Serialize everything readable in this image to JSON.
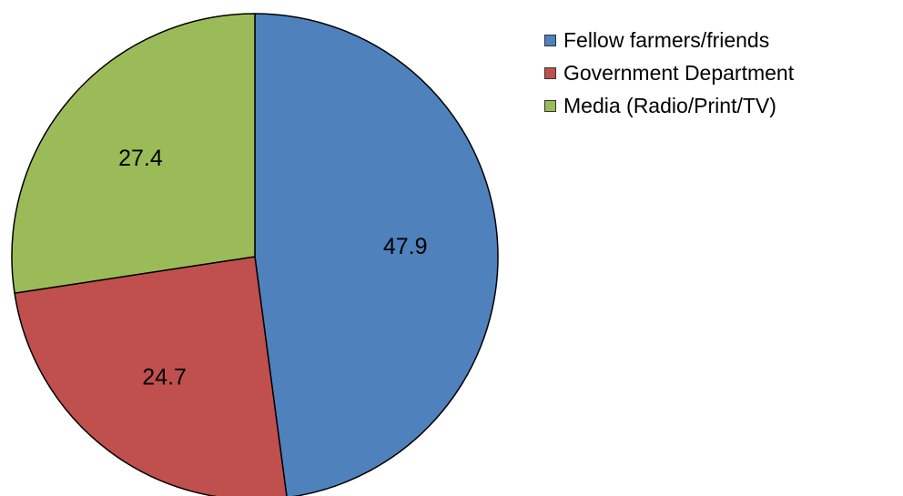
{
  "chart_data": {
    "type": "pie",
    "title": "",
    "categories": [
      "Fellow farmers/friends",
      "Government Department",
      "Media (Radio/Print/TV)"
    ],
    "values": [
      47.9,
      24.7,
      27.4
    ],
    "data_labels": [
      "47.9",
      "24.7",
      "27.4"
    ],
    "colors": [
      "#4F81BD",
      "#C0504D",
      "#9BBB59"
    ],
    "start_angle_deg": 0,
    "direction": "clockwise",
    "legend": {
      "position": "top-right",
      "items": [
        {
          "label": "Fellow farmers/friends",
          "color": "#4F81BD"
        },
        {
          "label": "Government Department",
          "color": "#C0504D"
        },
        {
          "label": "Media (Radio/Print/TV)",
          "color": "#9BBB59"
        }
      ]
    }
  }
}
